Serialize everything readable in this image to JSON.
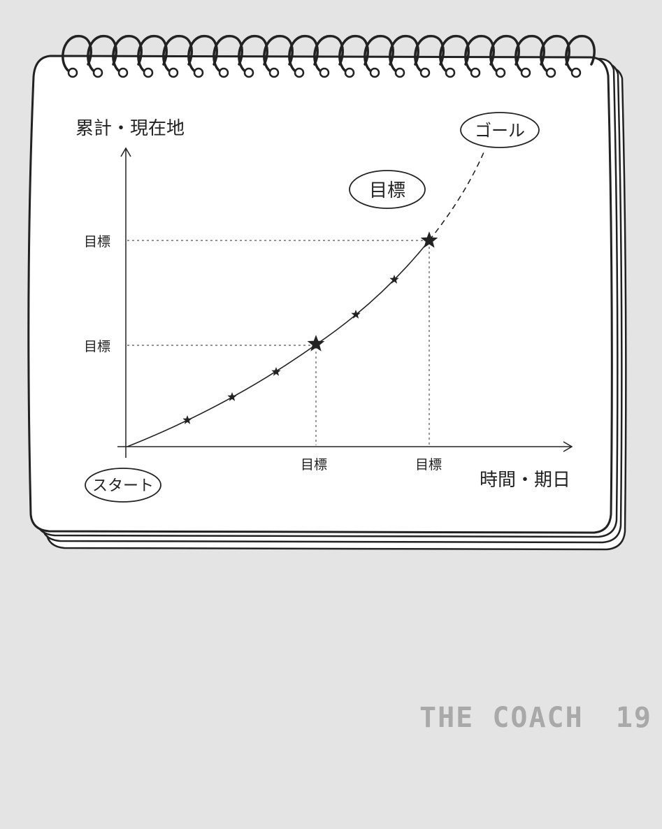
{
  "diagram": {
    "y_axis_label": "累計・現在地",
    "x_axis_label": "時間・期日",
    "y_ticks": [
      "目標",
      "目標"
    ],
    "x_ticks": [
      "目標",
      "目標"
    ],
    "start_label": "スタート",
    "goal_label": "ゴール",
    "target_bubble_label": "目標",
    "curve_style": "solid line rising to second milestone, then dashed to goal",
    "milestone_stars": 2,
    "small_stars": 6,
    "colors": {
      "ink": "#222222",
      "paper": "#ffffff",
      "background": "#e4e4e4",
      "footer_text": "#a9a9a9"
    }
  },
  "footer": {
    "text": "THE COACH",
    "page_number": "19"
  }
}
